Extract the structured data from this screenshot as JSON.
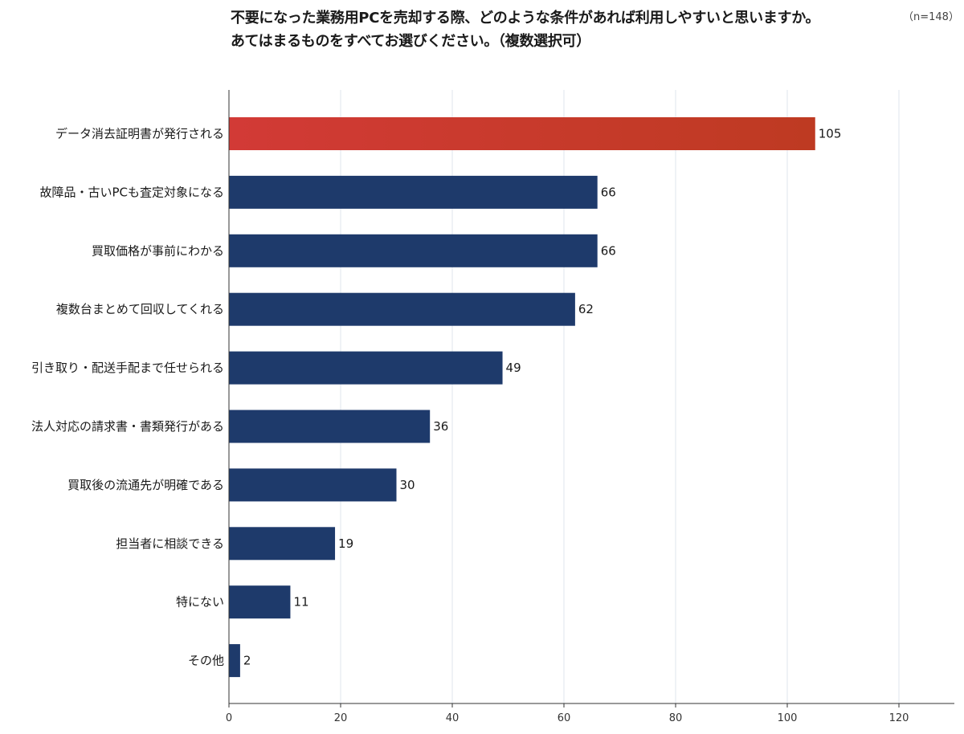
{
  "title": {
    "line1": "不要になった業務用PCを売却する際、どのような条件があれば利用しやすいと思いますか。",
    "line2": "あてはまるものをすべてお選びください。（複数選択可）",
    "sample_size": "（n=148）"
  },
  "chart_data": {
    "type": "bar",
    "orientation": "horizontal",
    "categories": [
      "データ消去証明書が発行される",
      "故障品・古いPCも査定対象になる",
      "買取価格が事前にわかる",
      "複数台まとめて回収してくれる",
      "引き取り・配送手配まで任せられる",
      "法人対応の請求書・書類発行がある",
      "買取後の流通先が明確である",
      "担当者に相談できる",
      "特にない",
      "その他"
    ],
    "values": [
      105,
      66,
      66,
      62,
      49,
      36,
      30,
      19,
      11,
      2
    ],
    "xlim": [
      0,
      130
    ],
    "xticks": [
      0,
      20,
      40,
      60,
      80,
      100,
      120
    ],
    "grid": true,
    "colors": {
      "highlight_start": "#d23a36",
      "highlight_end": "#be3a22",
      "bar": "#1e3a6b",
      "grid": "#dfe6ee",
      "axis": "#333333"
    }
  }
}
